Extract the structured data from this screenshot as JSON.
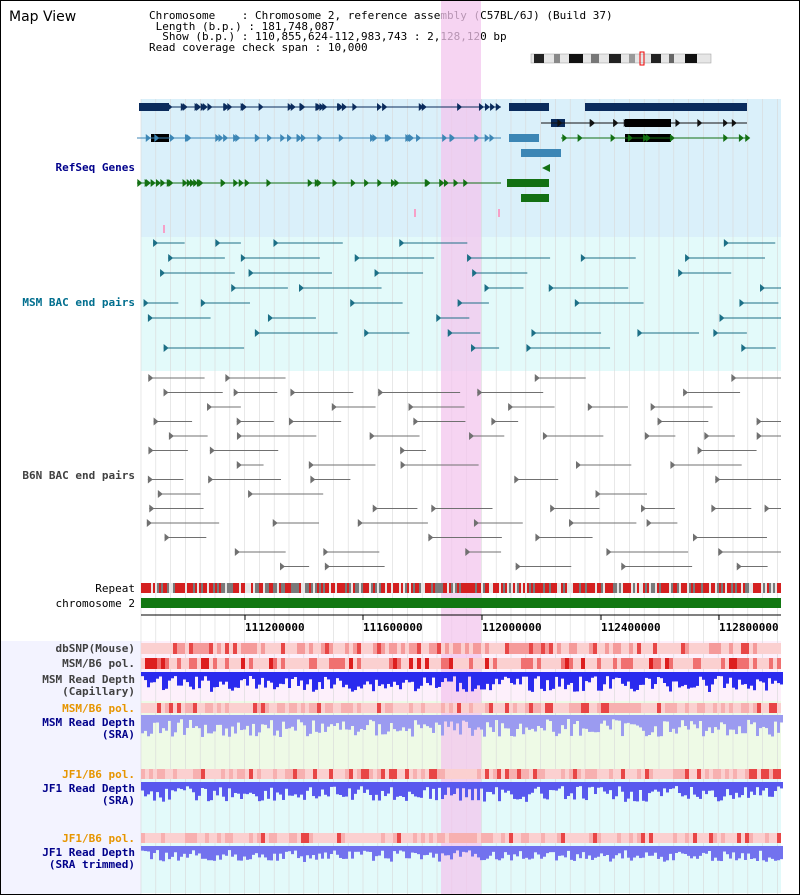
{
  "app": {
    "title": "Map View"
  },
  "header": {
    "chromosome_label": "Chromosome",
    "chromosome_value": "Chromosome 2, reference assembly (C57BL/6J) (Build 37)",
    "length_label": "Length (b.p.)",
    "length_value": "181,748,087",
    "show_label": "Show (b.p.)",
    "show_value": "110,855,624-112,983,743 : 2,128,120 bp",
    "coverage_label": "Read coverage check span",
    "coverage_value": "10,000"
  },
  "tracks": {
    "refseq": "RefSeq Genes",
    "msm_bac": "MSM BAC end pairs",
    "b6n_bac": "B6N BAC end pairs",
    "repeat": "Repeat",
    "chromosome": "chromosome 2",
    "dbsnp": "dbSNP(Mouse)",
    "msm_b6_pol": "MSM/B6 pol.",
    "msm_depth_cap": "MSM Read Depth",
    "msm_depth_cap_sub": "(Capillary)",
    "msm_b6_pol_2": "MSM/B6 pol.",
    "msm_depth_sra": "MSM Read Depth",
    "msm_depth_sra_sub": "(SRA)",
    "jf1_b6_pol": "JF1/B6 pol.",
    "jf1_depth_sra": "JF1 Read Depth",
    "jf1_depth_sra_sub": "(SRA)",
    "jf1_b6_pol_2": "JF1/B6 pol.",
    "jf1_depth_trim": "JF1 Read Depth",
    "jf1_depth_trim_sub": "(SRA trimmed)"
  },
  "axis": {
    "ticks": [
      "111200000",
      "111600000",
      "112000000",
      "112400000",
      "112800000"
    ]
  },
  "colors": {
    "highlight": "#f3c6ee",
    "refseq_bg": "#daf0fa",
    "msm_bg": "#e3fafa",
    "gene_dark": "#0a2b5c",
    "gene_mid": "#3c86b5",
    "gene_green": "#137013",
    "bac_teal": "#1c6f86",
    "bac_gray": "#707070",
    "repeat_red": "#d42020",
    "chrom_green": "#117711",
    "depth_blue": "#2a2aee",
    "label_blue": "#00008b",
    "label_teal": "#006e8e",
    "label_orange": "#e69500",
    "label_gray": "#404040"
  },
  "icons": {
    "chromosome_ideogram": "chromosome-ideogram-icon"
  }
}
